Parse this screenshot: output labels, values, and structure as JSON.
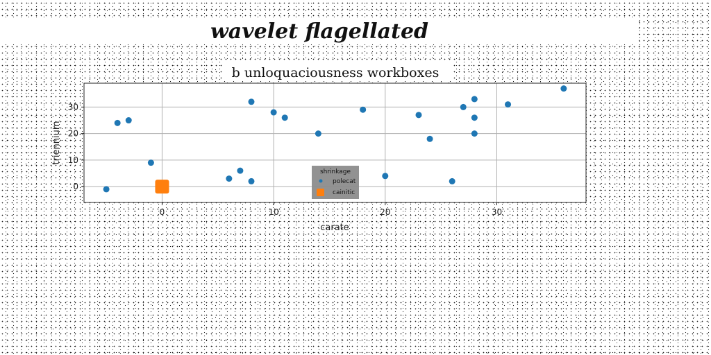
{
  "suptitle": "wavelet flagellated",
  "chart_data": {
    "type": "scatter",
    "title": "b unloquaciousness workboxes",
    "xlabel": "carate",
    "ylabel": "triennium",
    "xlim": [
      -7,
      38
    ],
    "ylim": [
      -6,
      39
    ],
    "xticks": [
      0,
      10,
      20,
      30
    ],
    "yticks": [
      0,
      10,
      20,
      30
    ],
    "grid": true,
    "legend": {
      "title": "shrinkage",
      "placement": "lower-center"
    },
    "series": [
      {
        "name": "polecat",
        "color": "#1f77b4",
        "marker": "circle",
        "points": [
          [
            -5,
            -1
          ],
          [
            -4,
            24
          ],
          [
            -3,
            25
          ],
          [
            -1,
            9
          ],
          [
            6,
            3
          ],
          [
            7,
            6
          ],
          [
            8,
            2
          ],
          [
            8,
            32
          ],
          [
            10,
            28
          ],
          [
            11,
            26
          ],
          [
            14,
            20
          ],
          [
            18,
            29
          ],
          [
            20,
            4
          ],
          [
            23,
            27
          ],
          [
            24,
            18
          ],
          [
            26,
            2
          ],
          [
            27,
            30
          ],
          [
            28,
            33
          ],
          [
            28,
            26
          ],
          [
            28,
            20
          ],
          [
            31,
            31
          ],
          [
            36,
            37
          ]
        ]
      },
      {
        "name": "cainitic",
        "color": "#ff7f0e",
        "marker": "square",
        "points": [
          [
            0,
            0
          ]
        ]
      }
    ]
  }
}
